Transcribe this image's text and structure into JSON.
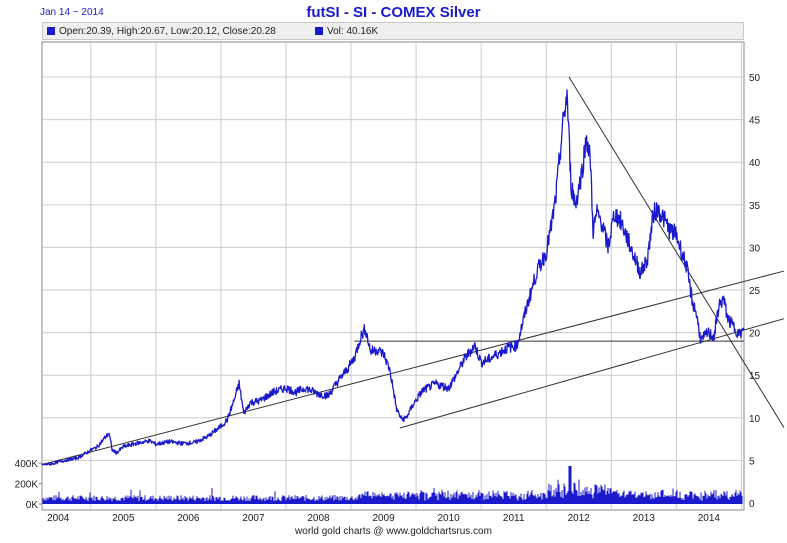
{
  "header": {
    "date": "Jan 14 ~ 2014",
    "title": "futSI - SI  -  COMEX Silver"
  },
  "legend": {
    "ohlc": "Open:20.39, High:20.67, Low:20.12, Close:20.28",
    "vol": "Vol: 40.16K"
  },
  "footer": {
    "credit": "world gold charts @ www.goldchartsrus.com"
  },
  "colors": {
    "series": "#1a1acc",
    "trendline": "#333333",
    "grid": "#cccccc"
  },
  "chart_data": {
    "type": "line",
    "title": "futSI - SI  -  COMEX Silver",
    "x_ticks": [
      "2004",
      "2005",
      "2006",
      "2007",
      "2008",
      "2009",
      "2010",
      "2011",
      "2012",
      "2013",
      "2014"
    ],
    "y_ticks": [
      "5",
      "10",
      "15",
      "20",
      "25",
      "30",
      "35",
      "40",
      "45",
      "50"
    ],
    "volume_ticks": [
      "0K",
      "200K",
      "400K"
    ],
    "xlim": [
      2003.25,
      2014.04
    ],
    "ylim": [
      0,
      52
    ],
    "volume_lim": [
      0,
      450000
    ],
    "grid": true,
    "series": [
      {
        "x": [
          2003.25,
          2003.4,
          2003.6,
          2003.8,
          2004.0,
          2004.1,
          2004.2,
          2004.28,
          2004.33,
          2004.4,
          2004.5,
          2004.7,
          2004.9,
          2005.0,
          2005.2,
          2005.4,
          2005.6,
          2005.8,
          2006.0,
          2006.1,
          2006.2,
          2006.28,
          2006.35,
          2006.45,
          2006.6,
          2006.8,
          2007.0,
          2007.15,
          2007.3,
          2007.5,
          2007.65,
          2007.8,
          2007.95,
          2008.05,
          2008.15,
          2008.22,
          2008.3,
          2008.4,
          2008.5,
          2008.6,
          2008.7,
          2008.78,
          2008.85,
          2008.95,
          2009.1,
          2009.3,
          2009.5,
          2009.6,
          2009.75,
          2009.9,
          2010.0,
          2010.1,
          2010.25,
          2010.4,
          2010.55,
          2010.7,
          2010.85,
          2011.0,
          2011.08,
          2011.15,
          2011.25,
          2011.32,
          2011.38,
          2011.45,
          2011.5,
          2011.55,
          2011.62,
          2011.68,
          2011.72,
          2011.78,
          2011.85,
          2011.95,
          2012.05,
          2012.15,
          2012.25,
          2012.35,
          2012.45,
          2012.55,
          2012.65,
          2012.72,
          2012.8,
          2012.9,
          2013.0,
          2013.08,
          2013.15,
          2013.25,
          2013.3,
          2013.38,
          2013.48,
          2013.58,
          2013.65,
          2013.72,
          2013.8,
          2013.9,
          2013.97,
          2014.04
        ],
        "y": [
          4.5,
          4.6,
          5.0,
          5.3,
          6.2,
          6.6,
          7.5,
          8.2,
          6.2,
          5.9,
          6.6,
          7.0,
          7.3,
          6.9,
          7.2,
          7.0,
          7.1,
          7.8,
          9.0,
          9.8,
          12.0,
          14.0,
          10.5,
          11.8,
          12.0,
          13.0,
          13.5,
          13.0,
          13.5,
          12.8,
          12.6,
          14.3,
          15.8,
          17.0,
          19.5,
          20.5,
          17.8,
          18.0,
          17.5,
          15.5,
          11.0,
          9.8,
          10.0,
          11.5,
          13.2,
          14.0,
          13.5,
          14.8,
          17.0,
          18.5,
          16.5,
          16.8,
          17.5,
          18.2,
          18.5,
          23.0,
          27.0,
          29.5,
          32.5,
          36.0,
          44.0,
          48.0,
          37.5,
          35.0,
          37.0,
          39.0,
          43.0,
          40.0,
          32.0,
          34.0,
          33.0,
          30.0,
          34.0,
          33.0,
          31.0,
          29.0,
          27.0,
          28.5,
          34.0,
          34.5,
          33.5,
          32.0,
          31.5,
          29.5,
          28.0,
          23.5,
          22.5,
          19.0,
          20.0,
          19.5,
          23.0,
          24.0,
          21.5,
          20.5,
          19.8,
          20.3
        ]
      }
    ],
    "trendlines": [
      {
        "x": [
          2003.25,
          2014.04
        ],
        "y": [
          4.5,
          26.0
        ]
      },
      {
        "x": [
          2008.75,
          2014.04
        ],
        "y": [
          8.8,
          20.3
        ]
      },
      {
        "x": [
          2011.35,
          2014.04
        ],
        "y": [
          50.0,
          16.5
        ]
      },
      {
        "x": [
          2008.05,
          2014.04
        ],
        "y": [
          19.0,
          19.0
        ]
      }
    ]
  }
}
